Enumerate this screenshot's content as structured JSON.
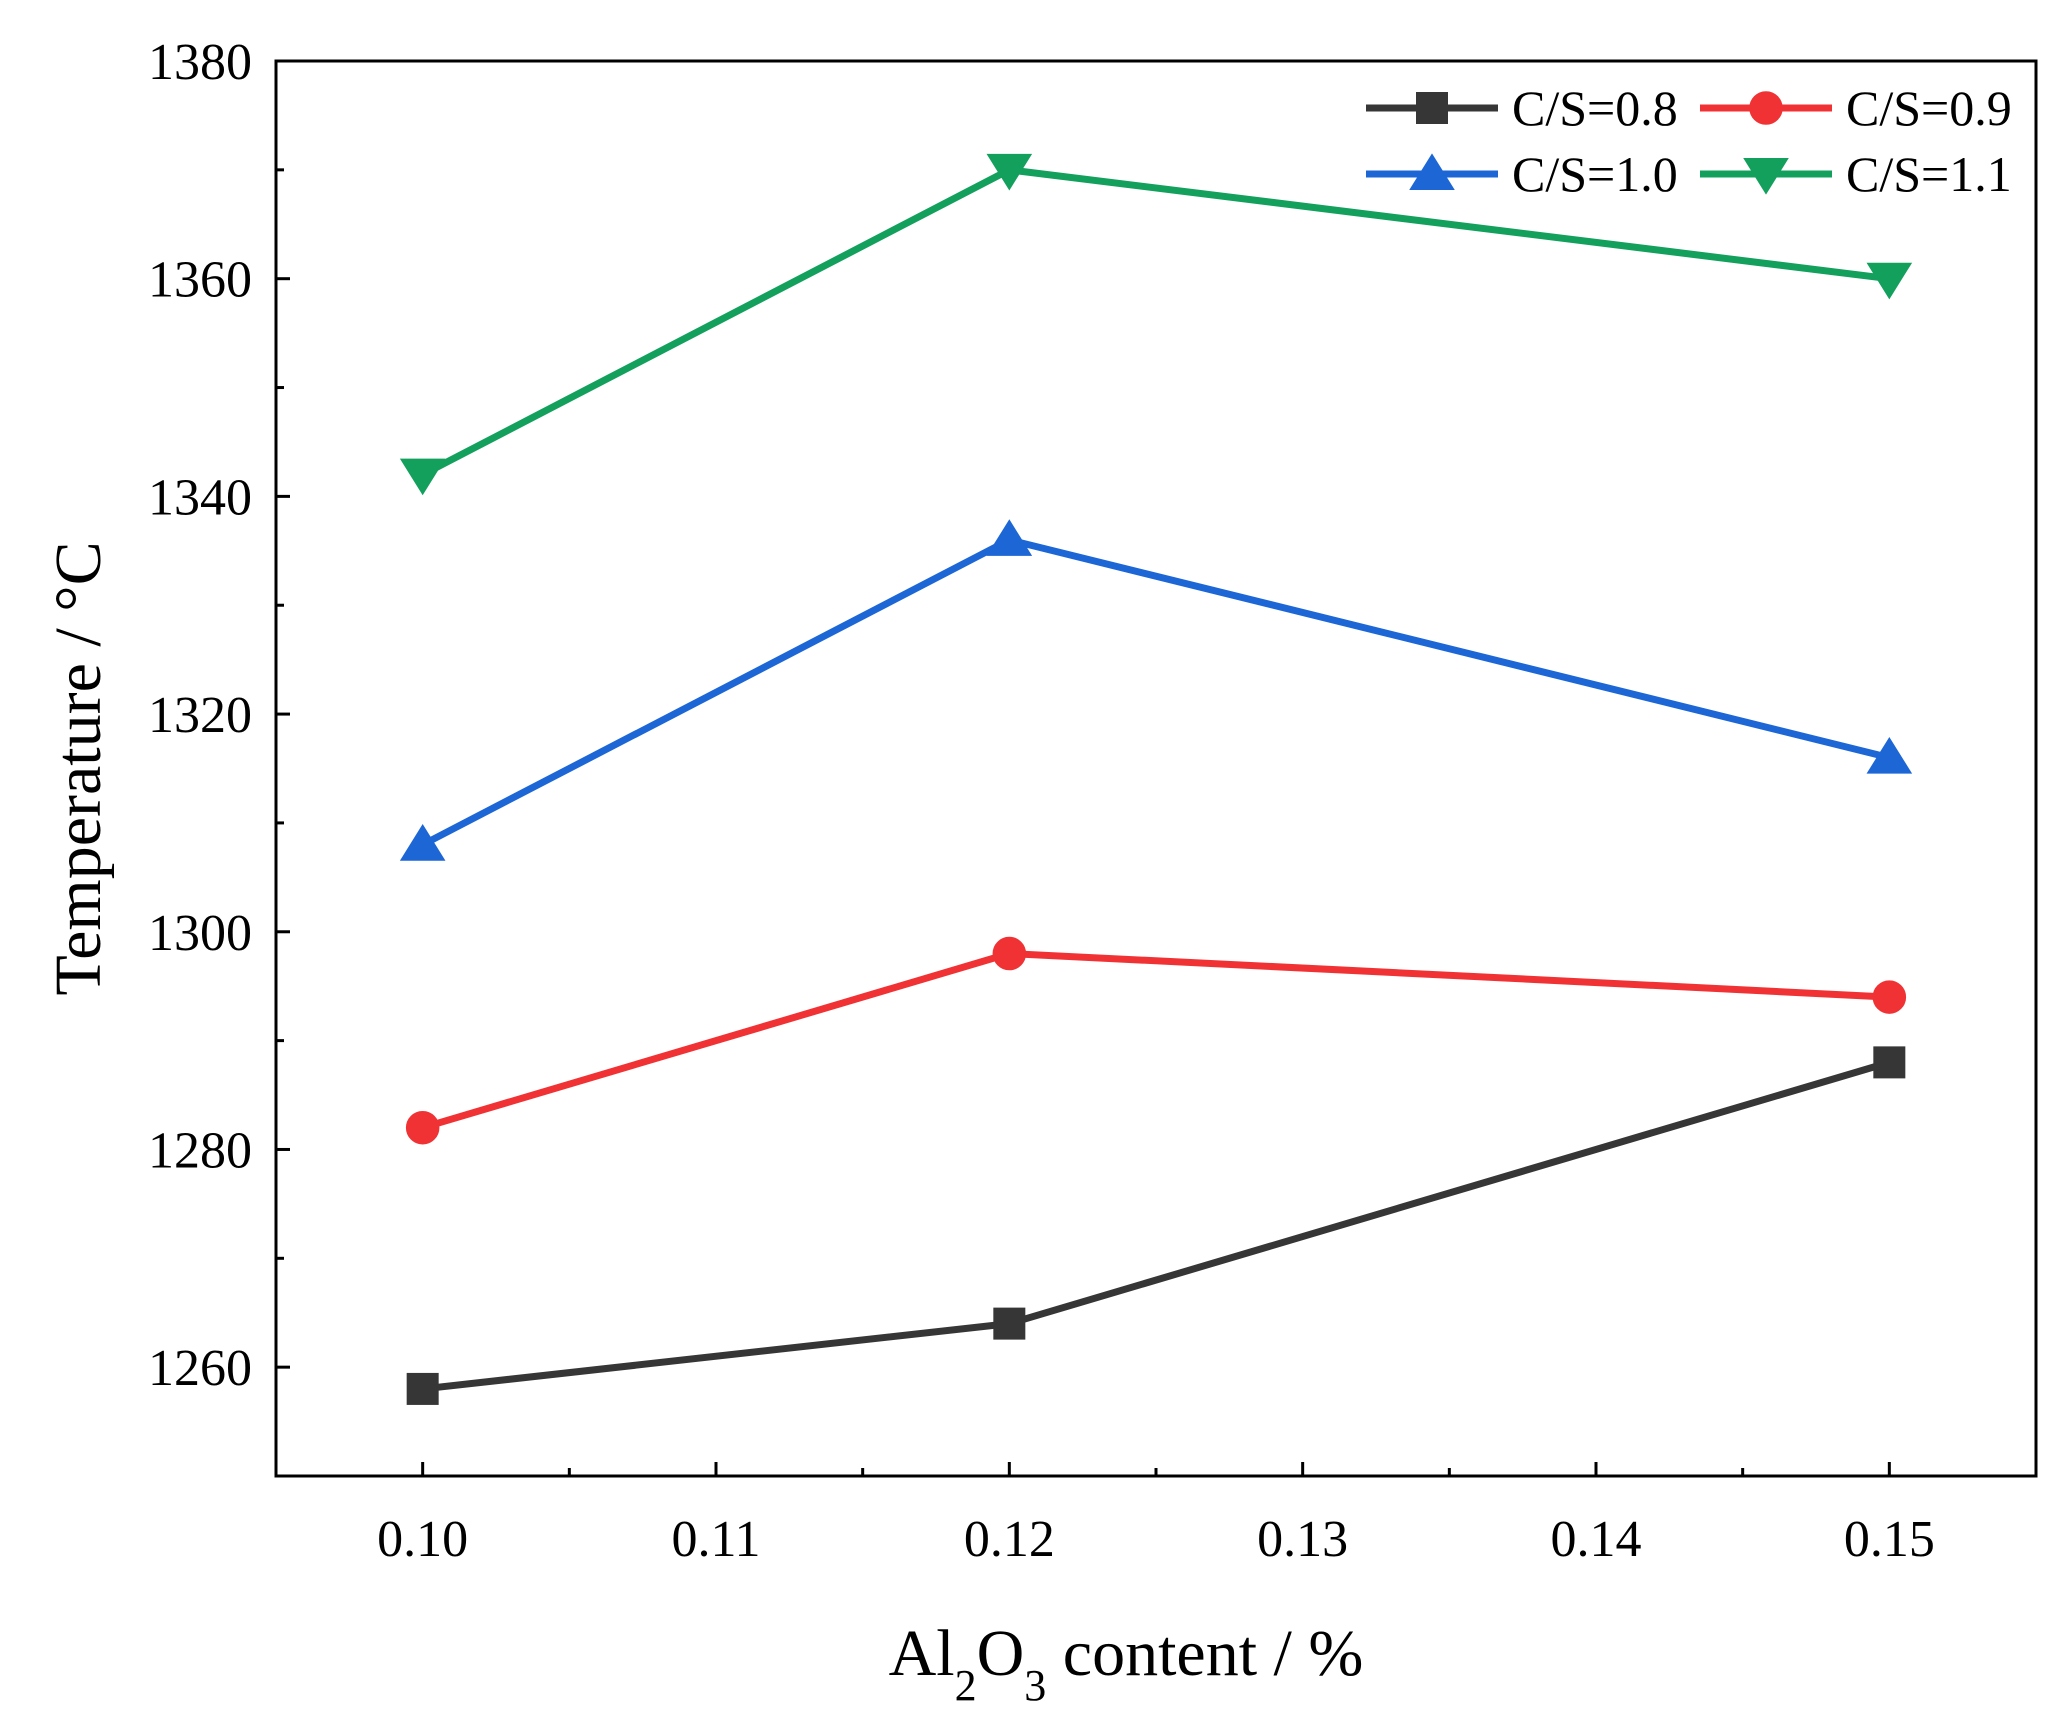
{
  "chart_data": {
    "type": "line",
    "title": "",
    "xlabel": {
      "main": "Al",
      "sub1": "2",
      "mid": "O",
      "sub2": "3",
      "tail": " content / %"
    },
    "ylabel": "Temperature / °C",
    "x": [
      0.1,
      0.12,
      0.15
    ],
    "xlim": [
      0.095,
      0.155
    ],
    "ylim": [
      1250,
      1380
    ],
    "xticks": [
      0.1,
      0.11,
      0.12,
      0.13,
      0.14,
      0.15
    ],
    "xtick_labels": [
      "0.10",
      "0.11",
      "0.12",
      "0.13",
      "0.14",
      "0.15"
    ],
    "yticks": [
      1260,
      1280,
      1300,
      1320,
      1340,
      1360,
      1380
    ],
    "ytick_labels": [
      "1260",
      "1280",
      "1300",
      "1320",
      "1340",
      "1360",
      "1380"
    ],
    "grid": false,
    "legend_position": "top-right",
    "series": [
      {
        "name": "C/S=0.8",
        "values": [
          1258,
          1264,
          1288
        ],
        "color": "#363636",
        "marker": "square"
      },
      {
        "name": "C/S=0.9",
        "values": [
          1282,
          1298,
          1294
        ],
        "color": "#f03234",
        "marker": "circle"
      },
      {
        "name": "C/S=1.0",
        "values": [
          1308,
          1336,
          1316
        ],
        "color": "#1d66d6",
        "marker": "triangle-up"
      },
      {
        "name": "C/S=1.1",
        "values": [
          1342,
          1370,
          1360
        ],
        "color": "#13a05d",
        "marker": "triangle-down"
      }
    ]
  }
}
